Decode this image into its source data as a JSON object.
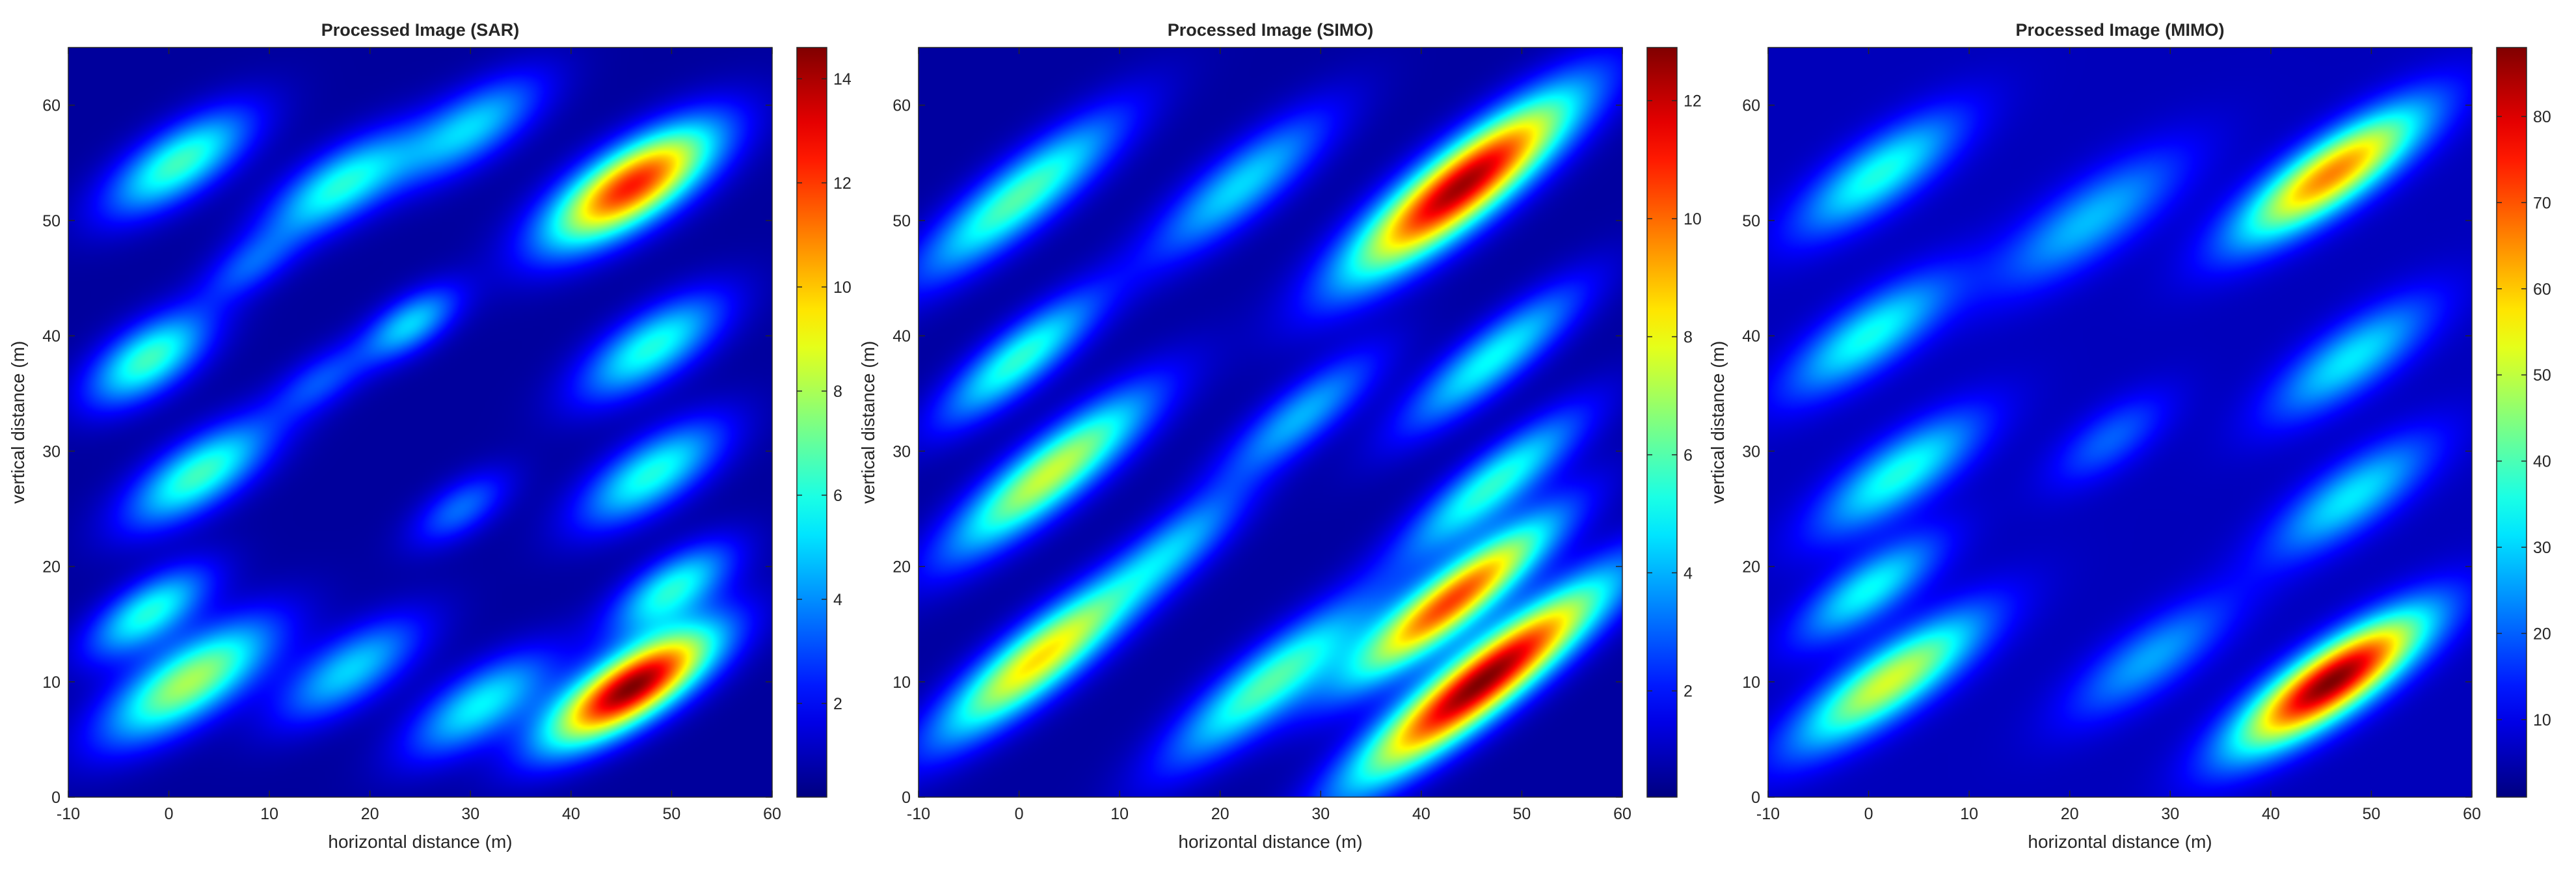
{
  "chart_data": [
    {
      "type": "heatmap",
      "title": "Processed Image (SAR)",
      "xlabel": "horizontal distance (m)",
      "ylabel": "vertical distance (m)",
      "xlim": [
        -10,
        60
      ],
      "ylim": [
        0,
        65
      ],
      "xticks": [
        -10,
        0,
        10,
        20,
        30,
        40,
        50,
        60
      ],
      "yticks": [
        0,
        10,
        20,
        30,
        40,
        50,
        60
      ],
      "colormap": "jet",
      "colorbar": {
        "range": [
          0.2,
          14.6
        ],
        "ticks": [
          2,
          4,
          6,
          8,
          10,
          12,
          14
        ]
      },
      "background_level": 0.6,
      "hotspots": [
        {
          "x": 46,
          "y": 9.5,
          "peak": 14.6,
          "major": 14,
          "minor": 4.5,
          "angle_deg": 28
        },
        {
          "x": 46,
          "y": 53,
          "peak": 12.5,
          "major": 14,
          "minor": 5,
          "angle_deg": 28
        },
        {
          "x": 2,
          "y": 10,
          "peak": 8.0,
          "major": 14,
          "minor": 5,
          "angle_deg": 28
        },
        {
          "x": -2,
          "y": 16,
          "peak": 6.0,
          "major": 10,
          "minor": 4,
          "angle_deg": 28
        },
        {
          "x": 3,
          "y": 28,
          "peak": 6.5,
          "major": 12,
          "minor": 4.5,
          "angle_deg": 28
        },
        {
          "x": -2,
          "y": 38,
          "peak": 6.5,
          "major": 10,
          "minor": 4.5,
          "angle_deg": 28
        },
        {
          "x": 1,
          "y": 55,
          "peak": 6.5,
          "major": 12,
          "minor": 4.5,
          "angle_deg": 28
        },
        {
          "x": 17,
          "y": 53,
          "peak": 6.0,
          "major": 12,
          "minor": 4.5,
          "angle_deg": 28
        },
        {
          "x": 24,
          "y": 41,
          "peak": 5.0,
          "major": 8,
          "minor": 3.5,
          "angle_deg": 28
        },
        {
          "x": 18,
          "y": 11,
          "peak": 5.0,
          "major": 12,
          "minor": 4.5,
          "angle_deg": 28
        },
        {
          "x": 31,
          "y": 8,
          "peak": 5.5,
          "major": 12,
          "minor": 4.5,
          "angle_deg": 28
        },
        {
          "x": 50,
          "y": 18,
          "peak": 6.0,
          "major": 10,
          "minor": 4,
          "angle_deg": 28
        },
        {
          "x": 48,
          "y": 28,
          "peak": 6.0,
          "major": 12,
          "minor": 4.5,
          "angle_deg": 28
        },
        {
          "x": 48,
          "y": 39,
          "peak": 6.0,
          "major": 12,
          "minor": 4.5,
          "angle_deg": 28
        },
        {
          "x": 30,
          "y": 58,
          "peak": 5.0,
          "major": 12,
          "minor": 4.5,
          "angle_deg": 28
        },
        {
          "x": 29,
          "y": 25,
          "peak": 3.5,
          "major": 8,
          "minor": 3.5,
          "angle_deg": 28
        },
        {
          "x": 15,
          "y": 36,
          "peak": 3.0,
          "major": 8,
          "minor": 3.5,
          "angle_deg": 28
        },
        {
          "x": 8,
          "y": 46,
          "peak": 3.0,
          "major": 8,
          "minor": 3.5,
          "angle_deg": 28
        }
      ]
    },
    {
      "type": "heatmap",
      "title": "Processed Image (SIMO)",
      "xlabel": "horizontal distance (m)",
      "ylabel": "vertical distance (m)",
      "xlim": [
        -10,
        60
      ],
      "ylim": [
        0,
        65
      ],
      "xticks": [
        -10,
        0,
        10,
        20,
        30,
        40,
        50,
        60
      ],
      "yticks": [
        0,
        10,
        20,
        30,
        40,
        50,
        60
      ],
      "colormap": "jet",
      "colorbar": {
        "range": [
          0.2,
          12.9
        ],
        "ticks": [
          2,
          4,
          6,
          8,
          10,
          12
        ]
      },
      "background_level": 0.6,
      "hotspots": [
        {
          "x": 46,
          "y": 10,
          "peak": 12.9,
          "major": 22,
          "minor": 4.5,
          "angle_deg": 34
        },
        {
          "x": 43,
          "y": 17,
          "peak": 10.5,
          "major": 18,
          "minor": 4,
          "angle_deg": 34
        },
        {
          "x": 44,
          "y": 53,
          "peak": 12.5,
          "major": 20,
          "minor": 5,
          "angle_deg": 34
        },
        {
          "x": 2,
          "y": 12,
          "peak": 8.5,
          "major": 18,
          "minor": 4.5,
          "angle_deg": 34
        },
        {
          "x": 3,
          "y": 28,
          "peak": 7.5,
          "major": 18,
          "minor": 4.5,
          "angle_deg": 34
        },
        {
          "x": 0,
          "y": 38,
          "peak": 5.5,
          "major": 14,
          "minor": 4,
          "angle_deg": 34
        },
        {
          "x": 0,
          "y": 52,
          "peak": 6.0,
          "major": 18,
          "minor": 4.5,
          "angle_deg": 34
        },
        {
          "x": 25,
          "y": 10,
          "peak": 6.0,
          "major": 18,
          "minor": 4.5,
          "angle_deg": 34
        },
        {
          "x": 47,
          "y": 27,
          "peak": 5.5,
          "major": 16,
          "minor": 4,
          "angle_deg": 34
        },
        {
          "x": 47,
          "y": 38,
          "peak": 5.0,
          "major": 16,
          "minor": 4,
          "angle_deg": 34
        },
        {
          "x": 22,
          "y": 53,
          "peak": 4.5,
          "major": 16,
          "minor": 4.5,
          "angle_deg": 34
        },
        {
          "x": 28,
          "y": 33,
          "peak": 4.0,
          "major": 14,
          "minor": 4,
          "angle_deg": 34
        },
        {
          "x": 16,
          "y": 22,
          "peak": 3.5,
          "major": 12,
          "minor": 4,
          "angle_deg": 34
        }
      ]
    },
    {
      "type": "heatmap",
      "title": "Processed Image (MIMO)",
      "xlabel": "horizontal distance (m)",
      "ylabel": "vertical distance (m)",
      "xlim": [
        -10,
        60
      ],
      "ylim": [
        0,
        65
      ],
      "xticks": [
        -10,
        0,
        10,
        20,
        30,
        40,
        50,
        60
      ],
      "yticks": [
        0,
        10,
        20,
        30,
        40,
        50,
        60
      ],
      "colormap": "jet",
      "colorbar": {
        "range": [
          1,
          88
        ],
        "ticks": [
          10,
          20,
          30,
          40,
          50,
          60,
          70,
          80
        ]
      },
      "background_level": 6,
      "hotspots": [
        {
          "x": 46,
          "y": 10,
          "peak": 88,
          "major": 16,
          "minor": 4.5,
          "angle_deg": 30
        },
        {
          "x": 46,
          "y": 54,
          "peak": 66,
          "major": 16,
          "minor": 4.5,
          "angle_deg": 30
        },
        {
          "x": 2,
          "y": 10,
          "peak": 52,
          "major": 16,
          "minor": 4.5,
          "angle_deg": 30
        },
        {
          "x": 0,
          "y": 18,
          "peak": 34,
          "major": 12,
          "minor": 4,
          "angle_deg": 30
        },
        {
          "x": 3,
          "y": 28,
          "peak": 36,
          "major": 14,
          "minor": 4.5,
          "angle_deg": 30
        },
        {
          "x": 0,
          "y": 40,
          "peak": 35,
          "major": 14,
          "minor": 4.5,
          "angle_deg": 30
        },
        {
          "x": 1,
          "y": 54,
          "peak": 36,
          "major": 14,
          "minor": 4.5,
          "angle_deg": 30
        },
        {
          "x": 22,
          "y": 50,
          "peak": 28,
          "major": 16,
          "minor": 5,
          "angle_deg": 30
        },
        {
          "x": 28,
          "y": 12,
          "peak": 26,
          "major": 14,
          "minor": 4.5,
          "angle_deg": 30
        },
        {
          "x": 48,
          "y": 26,
          "peak": 32,
          "major": 14,
          "minor": 4.5,
          "angle_deg": 30
        },
        {
          "x": 48,
          "y": 38,
          "peak": 32,
          "major": 14,
          "minor": 4.5,
          "angle_deg": 30
        },
        {
          "x": 24,
          "y": 31,
          "peak": 20,
          "major": 10,
          "minor": 4,
          "angle_deg": 30
        }
      ]
    }
  ]
}
